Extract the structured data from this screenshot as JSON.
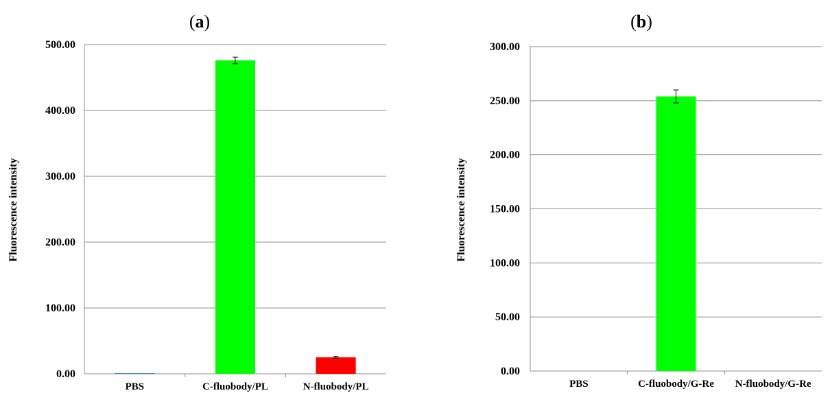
{
  "chart_data": [
    {
      "type": "bar",
      "panel_label": "a",
      "categories": [
        "PBS",
        "C-fluobody/PL",
        "N-fluobody/PL"
      ],
      "values": [
        1,
        476,
        25
      ],
      "errors": [
        0,
        5,
        1.5
      ],
      "colors": [
        "#4f81bd",
        "#00ff00",
        "#ff0000"
      ],
      "ylabel": "Fluorescence intensity",
      "ylim": [
        0,
        500
      ],
      "yticks": [
        "0.00",
        "100.00",
        "200.00",
        "300.00",
        "400.00",
        "500.00"
      ],
      "grid": true
    },
    {
      "type": "bar",
      "panel_label": "b",
      "categories": [
        "PBS",
        "C-fluobody/G-Re",
        "N-fluobody/G-Re"
      ],
      "values": [
        0,
        254,
        0
      ],
      "errors": [
        0,
        6,
        0
      ],
      "colors": [
        "#4f81bd",
        "#00ff00",
        "#ff0000"
      ],
      "ylabel": "Fluorescence intensity",
      "ylim": [
        0,
        300
      ],
      "yticks": [
        "0.00",
        "50.00",
        "100.00",
        "150.00",
        "200.00",
        "250.00",
        "300.00"
      ],
      "grid": true
    }
  ]
}
